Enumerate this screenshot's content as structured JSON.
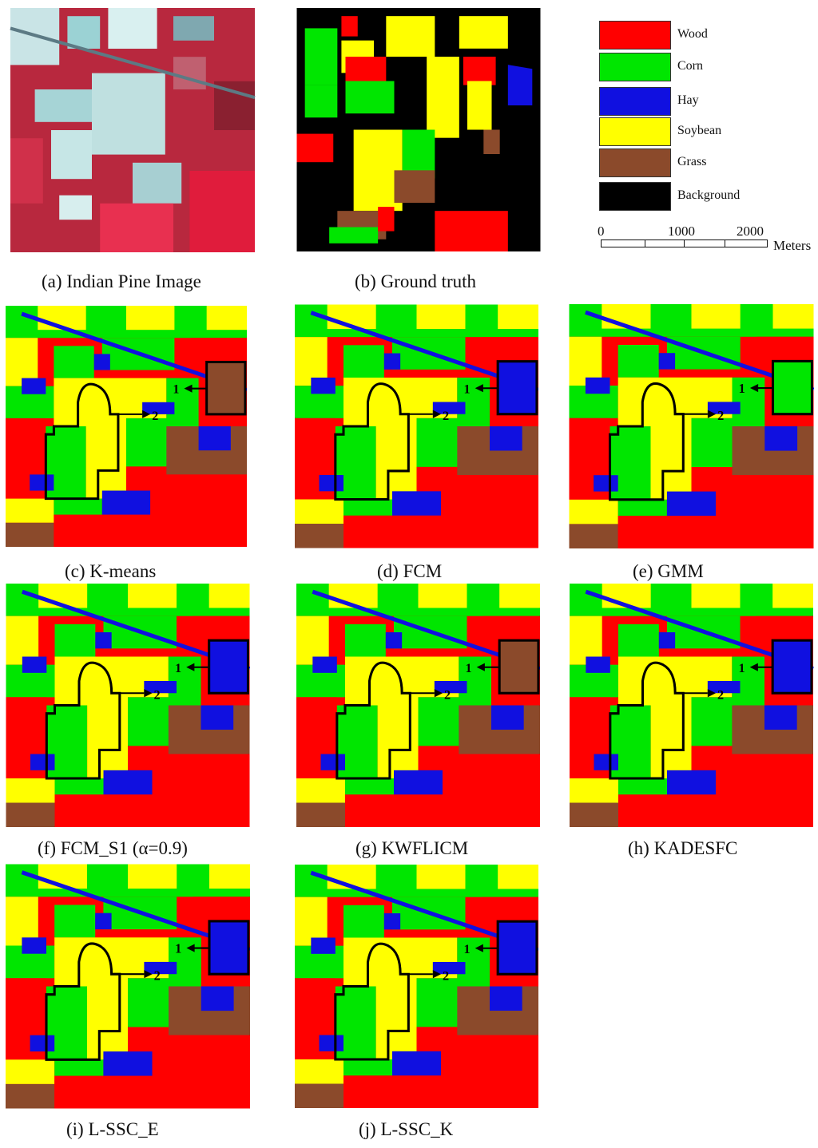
{
  "colors": {
    "wood": "#ff0000",
    "corn": "#00e600",
    "hay": "#1010e0",
    "soybean": "#ffff00",
    "grass": "#8b4a2b",
    "background": "#000000"
  },
  "legend": [
    {
      "label": "Wood",
      "color": "#ff0000"
    },
    {
      "label": "Corn",
      "color": "#00e600"
    },
    {
      "label": "Hay",
      "color": "#1010e0"
    },
    {
      "label": "Soybean",
      "color": "#ffff00"
    },
    {
      "label": "Grass",
      "color": "#8b4a2b"
    },
    {
      "label": "Background",
      "color": "#000000"
    }
  ],
  "scalebar": {
    "ticks": [
      "0",
      "1000",
      "2000"
    ],
    "unit": "Meters"
  },
  "captions": {
    "a": "(a) Indian Pine Image",
    "b": "(b) Ground truth",
    "c": "(c) K-means",
    "d": "(d) FCM",
    "e": "(e) GMM",
    "f": "(f) FCM_S1 (α=0.9)",
    "g": "(g) KWFLICM",
    "h": "(h) KADESFC",
    "i": "(i) L-SSC_E",
    "j": "(j) L-SSC_K"
  },
  "annotations": {
    "label1": "1",
    "label2": "2"
  },
  "panels": [
    {
      "id": "c",
      "box_class": "grass"
    },
    {
      "id": "d",
      "box_class": "hay"
    },
    {
      "id": "e",
      "box_class": "corn"
    },
    {
      "id": "f",
      "box_class": "hay"
    },
    {
      "id": "g",
      "box_class": "grass"
    },
    {
      "id": "h",
      "box_class": "hay"
    },
    {
      "id": "i",
      "box_class": "hay"
    },
    {
      "id": "j",
      "box_class": "hay"
    }
  ]
}
